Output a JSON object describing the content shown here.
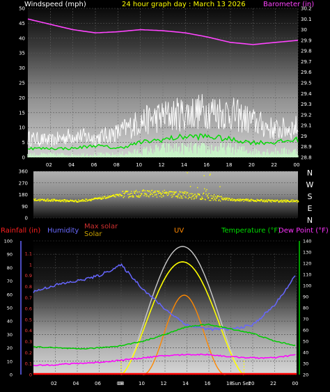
{
  "header": {
    "windspeed_label": "Windspeed (mph)",
    "title": "24 hour graph day : March 13 2026",
    "barometer_label": "Barometer (in)"
  },
  "colors": {
    "windspeed": "#ffffff",
    "title": "#ffff00",
    "barometer": "#ff44ff",
    "wind_avg": "#00dd00",
    "wind_low": "#c8f8c8",
    "wind_dir": "#ffff00",
    "rainfall": "#ff0000",
    "humidity": "#6666ff",
    "max_solar": "#cccccc",
    "solar": "#ffff00",
    "uv": "#ff8800",
    "temperature": "#00cc00",
    "dew_point": "#ff00ff"
  },
  "x_ticks": [
    "02",
    "04",
    "06",
    "08",
    "10",
    "12",
    "14",
    "16",
    "18",
    "20",
    "22",
    "00"
  ],
  "wind_chart": {
    "y_left": [
      "0",
      "5",
      "10",
      "15",
      "20",
      "25",
      "30",
      "35",
      "40",
      "45",
      "50"
    ],
    "y_right": [
      "28.8",
      "28.9",
      "29",
      "29.1",
      "29.2",
      "29.3",
      "29.4",
      "29.5",
      "29.6",
      "29.7",
      "29.8",
      "29.9",
      "30",
      "30.1",
      "30.2"
    ],
    "ylim_wind": [
      0,
      50
    ],
    "ylim_baro": [
      28.8,
      30.2
    ]
  },
  "dir_chart": {
    "y_ticks": [
      "0",
      "90",
      "180",
      "270",
      "360"
    ],
    "letters": [
      "N",
      "W",
      "S",
      "E",
      "N"
    ],
    "ylim": [
      0,
      360
    ]
  },
  "bottom_legend": {
    "rainfall": "Rainfall (in)",
    "humidity": "Humidity",
    "max_solar": "Max solar",
    "solar": "Solar",
    "uv": "UV",
    "temperature": "Temperature (°F)",
    "dew_point": "Dew Point (°F)"
  },
  "bottom_chart": {
    "humidity_ticks": [
      "0",
      "10",
      "20",
      "30",
      "40",
      "50",
      "60",
      "70",
      "80",
      "90",
      "100"
    ],
    "rain_ticks": [
      "0",
      "0.1",
      "0.2",
      "0.3",
      "0.4",
      "0.5",
      "0.6",
      "0.7",
      "0.8",
      "0.9",
      "1",
      "1.1"
    ],
    "temp_ticks": [
      "20",
      "30",
      "40",
      "50",
      "60",
      "70",
      "80",
      "90",
      "100",
      "110",
      "120",
      "130",
      "140"
    ],
    "sunrise_label": "08",
    "sunset_label": "Sun Set"
  },
  "chart_data": [
    {
      "type": "line",
      "title": "24 hour graph day : March 13 2026",
      "x_hours": [
        0,
        2,
        4,
        6,
        8,
        10,
        12,
        14,
        16,
        18,
        20,
        22,
        24
      ],
      "series": [
        {
          "name": "Barometer (in)",
          "values": [
            30.1,
            30.05,
            30.0,
            29.97,
            29.98,
            30.0,
            29.99,
            29.97,
            29.93,
            29.88,
            29.86,
            29.88,
            29.9
          ]
        },
        {
          "name": "Windspeed (mph)",
          "values": [
            7,
            6,
            8,
            7,
            9,
            13,
            15,
            16,
            17,
            16,
            13,
            10,
            11
          ]
        },
        {
          "name": "Wind avg",
          "values": [
            3,
            3,
            3,
            4,
            3,
            5,
            6,
            7,
            7,
            6,
            5,
            5,
            6
          ]
        },
        {
          "name": "Wind low",
          "values": [
            1,
            1,
            1,
            1,
            1,
            2,
            3,
            3,
            3,
            3,
            2,
            2,
            2
          ]
        }
      ],
      "ylim": [
        0,
        50
      ]
    },
    {
      "type": "scatter",
      "series": [
        {
          "name": "Wind direction",
          "values": [
            140,
            135,
            130,
            150,
            180,
            190,
            185,
            175,
            160,
            140,
            135,
            130,
            130
          ]
        }
      ],
      "x_hours": [
        0,
        2,
        4,
        6,
        8,
        10,
        12,
        14,
        16,
        18,
        20,
        22,
        24
      ],
      "ylim": [
        0,
        360
      ]
    },
    {
      "type": "line",
      "x_hours": [
        0,
        2,
        4,
        6,
        8,
        10,
        12,
        14,
        16,
        18,
        20,
        22,
        24
      ],
      "series": [
        {
          "name": "Humidity",
          "values": [
            62,
            67,
            70,
            74,
            82,
            64,
            49,
            37,
            34,
            34,
            37,
            52,
            75
          ]
        },
        {
          "name": "Temperature (°F)",
          "values": [
            45,
            44,
            43,
            44,
            46,
            50,
            56,
            63,
            65,
            61,
            57,
            50,
            46
          ]
        },
        {
          "name": "Dew Point (°F)",
          "values": [
            28,
            29,
            30,
            31,
            33,
            35,
            37,
            38,
            38,
            36,
            35,
            35,
            38
          ]
        },
        {
          "name": "Max solar",
          "values": [
            0,
            0,
            0,
            0,
            0,
            40,
            86,
            100,
            86,
            42,
            0,
            0,
            0
          ]
        },
        {
          "name": "Solar",
          "values": [
            0,
            0,
            0,
            0,
            0,
            35,
            75,
            90,
            75,
            35,
            0,
            0,
            0
          ]
        },
        {
          "name": "UV",
          "values": [
            0,
            0,
            0,
            0,
            0,
            5,
            30,
            55,
            30,
            5,
            0,
            0,
            0
          ]
        },
        {
          "name": "Rainfall (in)",
          "values": [
            0,
            0,
            0,
            0,
            0,
            0,
            0,
            0,
            0,
            0,
            0,
            0,
            0
          ]
        }
      ]
    }
  ]
}
